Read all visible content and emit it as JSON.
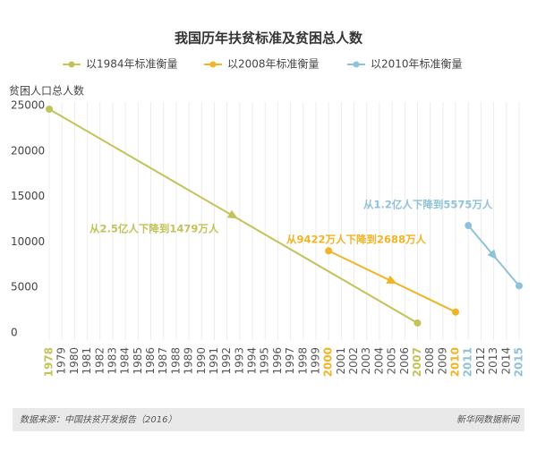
{
  "chart_data": {
    "type": "line",
    "title": "我国历年扶贫标准及贫困总人数",
    "y_label": "贫困人口总人数",
    "source": "数据来源：中国扶贫开发报告（2016）",
    "credit": "新华网数据新闻",
    "xlim": [
      1978,
      2015
    ],
    "xticks": [
      1978,
      1979,
      1980,
      1981,
      1982,
      1983,
      1984,
      1985,
      1986,
      1987,
      1988,
      1989,
      1990,
      1991,
      1992,
      1993,
      1994,
      1995,
      1996,
      1997,
      1998,
      1999,
      2000,
      2001,
      2002,
      2003,
      2004,
      2005,
      2006,
      2007,
      2008,
      2009,
      2010,
      2011,
      2012,
      2013,
      2014,
      2015
    ],
    "ylim": [
      0,
      25000
    ],
    "yticks": [
      0,
      5000,
      10000,
      15000,
      20000,
      25000
    ],
    "grid": true,
    "series": [
      {
        "name": "以1984年标准衡量",
        "color": "#c3c25b",
        "x": [
          1978,
          2007
        ],
        "values": [
          25000,
          1479
        ],
        "annotation": "从2.5亿人下降到1479万人"
      },
      {
        "name": "以2008年标准衡量",
        "color": "#f2b324",
        "x": [
          2000,
          2010
        ],
        "values": [
          9422,
          2688
        ],
        "annotation": "从9422万人下降到2688万人"
      },
      {
        "name": "以2010年标准衡量",
        "color": "#8fc2da",
        "x": [
          2011,
          2015
        ],
        "values": [
          12200,
          5575
        ],
        "annotation": "从1.2亿人下降到5575万人"
      }
    ]
  }
}
